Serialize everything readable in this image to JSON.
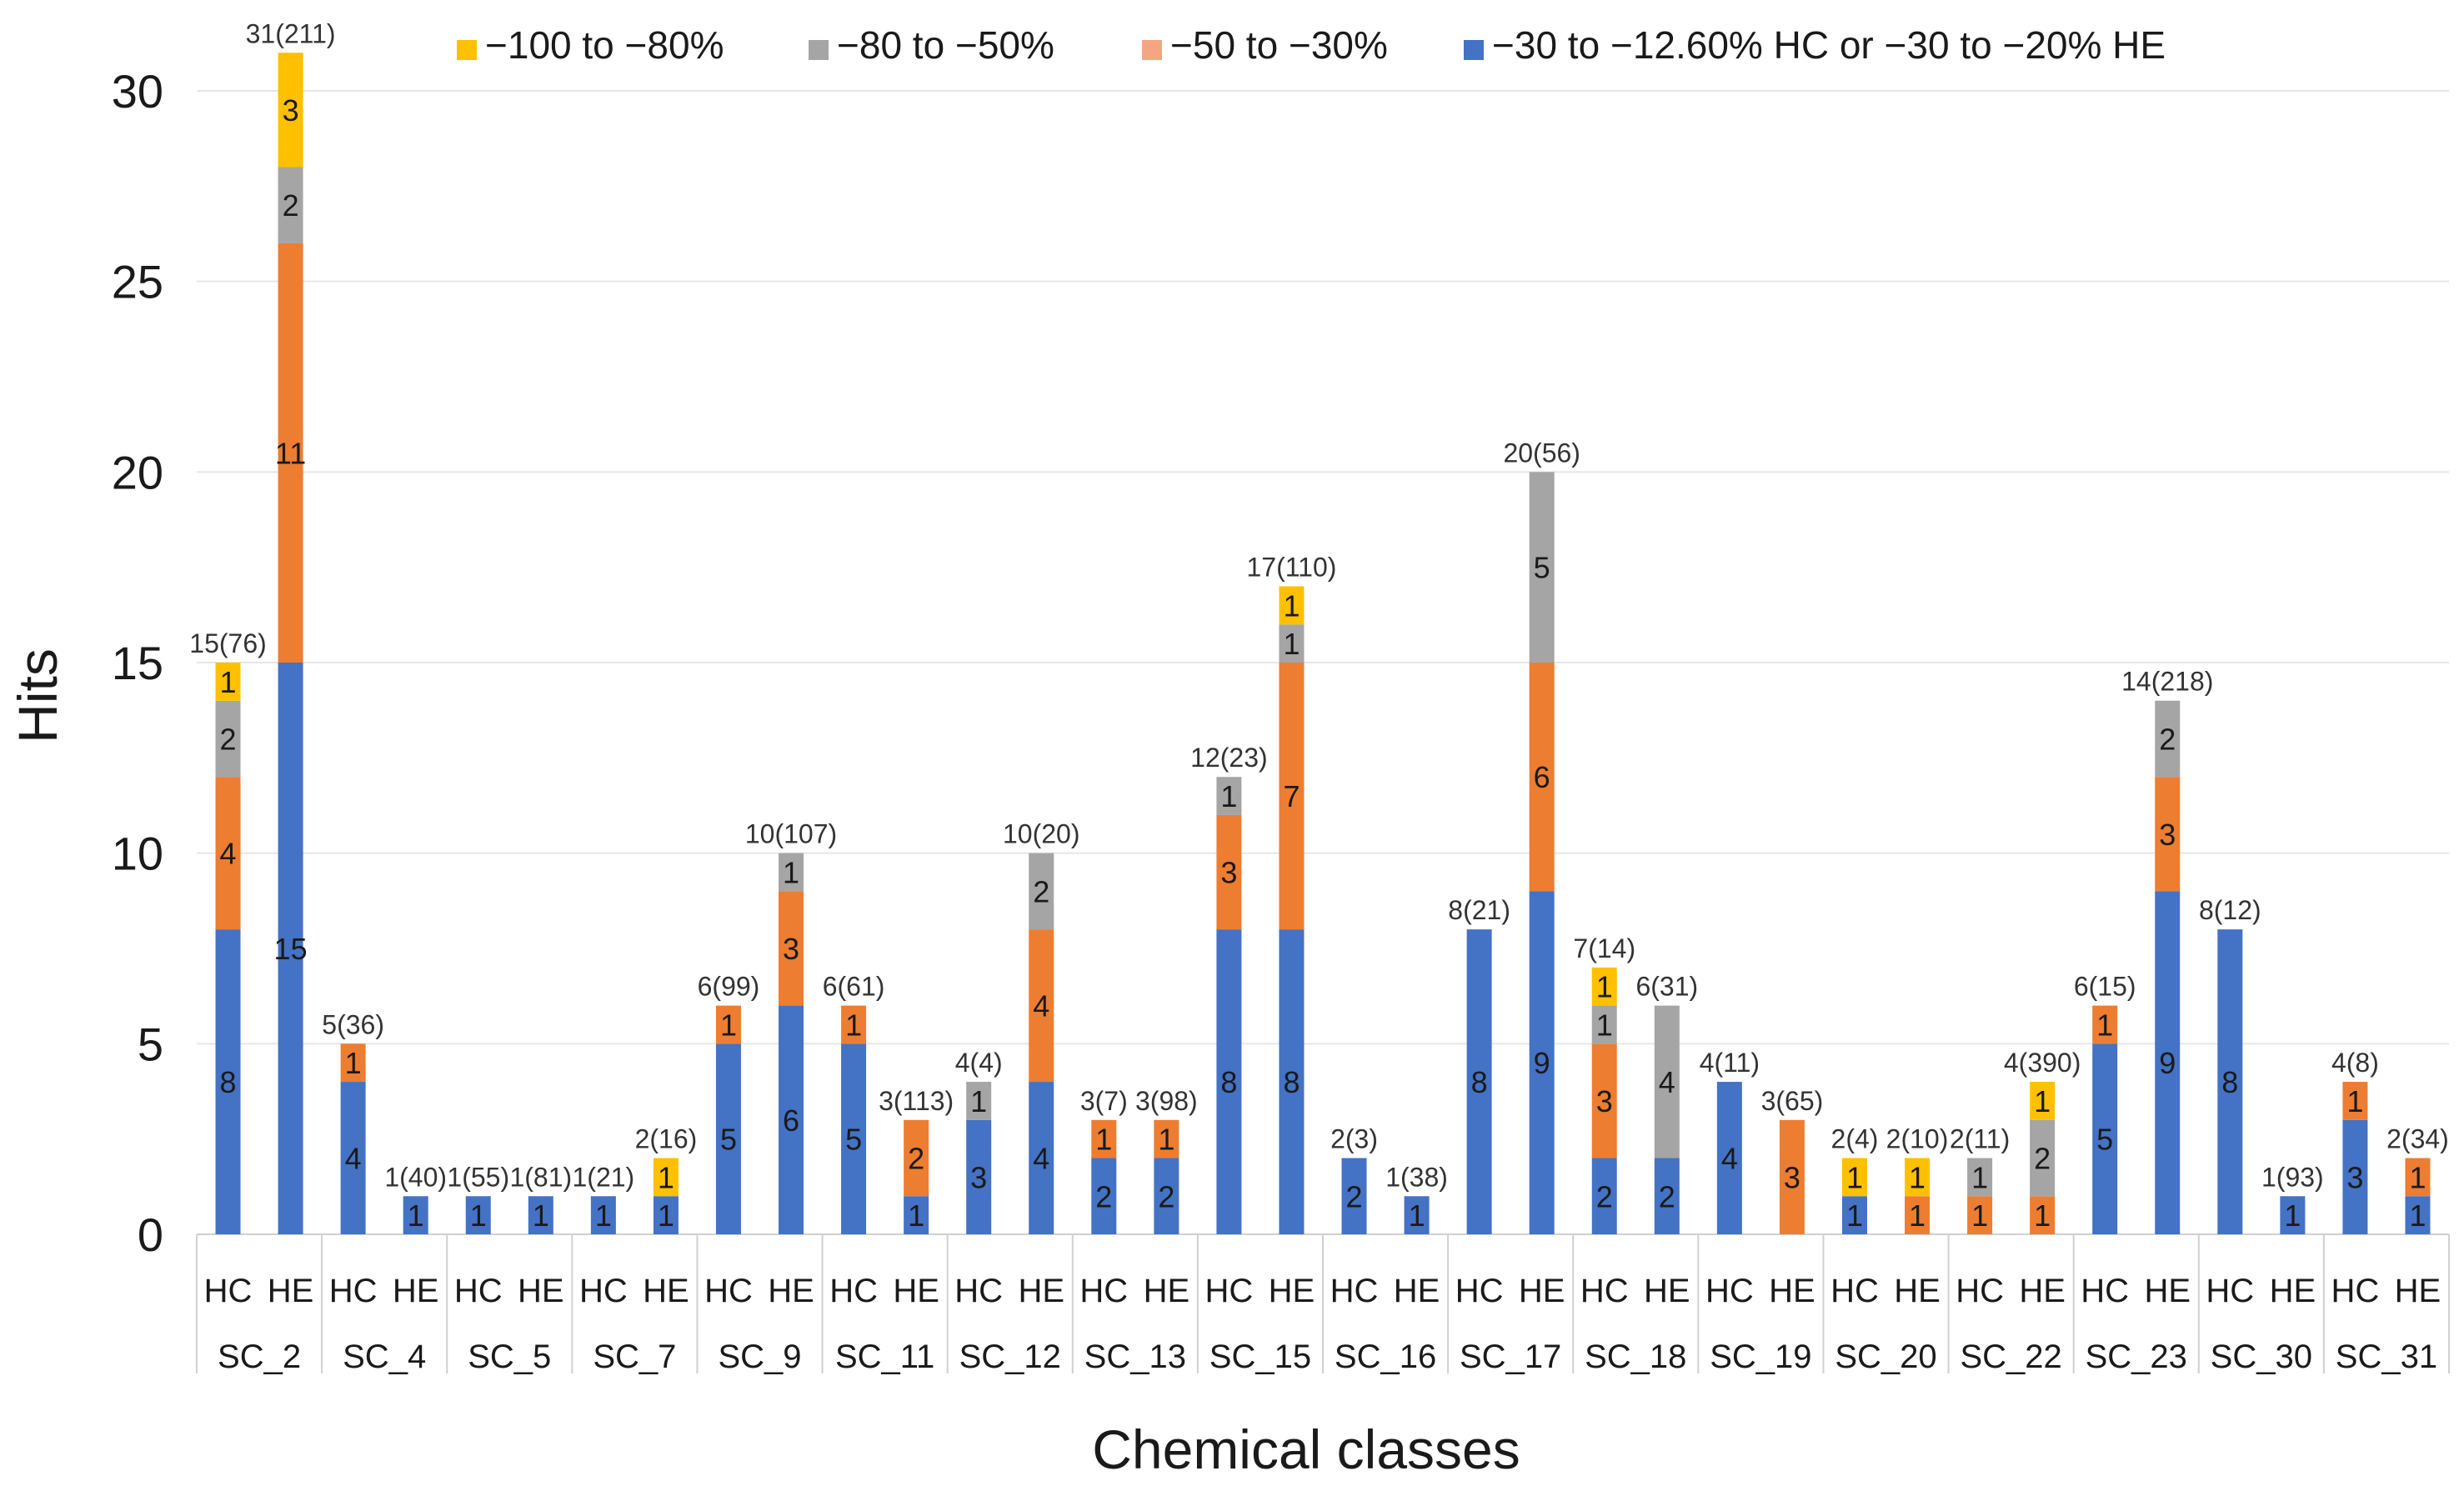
{
  "chart_data": {
    "type": "bar",
    "stacked": true,
    "title": "",
    "xlabel": "Chemical classes",
    "ylabel": "Hits",
    "ylim": [
      0,
      31
    ],
    "yticks": [
      0,
      5,
      10,
      15,
      20,
      25,
      30
    ],
    "grid": true,
    "legend_position": "top",
    "legend": [
      {
        "key": "r1",
        "label": "−100 to −80%",
        "color": "#FFC000"
      },
      {
        "key": "r2",
        "label": "−80 to −50%",
        "color": "#A5A5A5"
      },
      {
        "key": "r3",
        "label": "−50 to −30%",
        "color": "#F4A582"
      },
      {
        "key": "r4",
        "label": "−30 to −12.60% HC or −30 to −20% HE",
        "color": "#4472C4"
      }
    ],
    "segment_colors": {
      "r4": "#4472C4",
      "r3": "#ED7D31",
      "r2": "#A5A5A5",
      "r1": "#FFC000"
    },
    "stack_order": [
      "r4",
      "r3",
      "r2",
      "r1"
    ],
    "groups": [
      {
        "class": "SC_2",
        "bars": [
          {
            "sub": "HC",
            "total_label": "15(76)",
            "r4": 8,
            "r3": 4,
            "r2": 2,
            "r1": 1
          },
          {
            "sub": "HE",
            "total_label": "31(211)",
            "r4": 15,
            "r3": 11,
            "r2": 2,
            "r1": 3
          }
        ]
      },
      {
        "class": "SC_4",
        "bars": [
          {
            "sub": "HC",
            "total_label": "5(36)",
            "r4": 4,
            "r3": 1,
            "r2": 0,
            "r1": 0
          },
          {
            "sub": "HE",
            "total_label": "1(40)",
            "r4": 1,
            "r3": 0,
            "r2": 0,
            "r1": 0
          }
        ]
      },
      {
        "class": "SC_5",
        "bars": [
          {
            "sub": "HC",
            "total_label": "1(55)",
            "r4": 1,
            "r3": 0,
            "r2": 0,
            "r1": 0
          },
          {
            "sub": "HE",
            "total_label": "1(81)",
            "r4": 1,
            "r3": 0,
            "r2": 0,
            "r1": 0
          }
        ]
      },
      {
        "class": "SC_7",
        "bars": [
          {
            "sub": "HC",
            "total_label": "1(21)",
            "r4": 1,
            "r3": 0,
            "r2": 0,
            "r1": 0
          },
          {
            "sub": "HE",
            "total_label": "2(16)",
            "r4": 1,
            "r3": 0,
            "r2": 0,
            "r1": 1
          }
        ]
      },
      {
        "class": "SC_9",
        "bars": [
          {
            "sub": "HC",
            "total_label": "6(99)",
            "r4": 5,
            "r3": 1,
            "r2": 0,
            "r1": 0
          },
          {
            "sub": "HE",
            "total_label": "10(107)",
            "r4": 6,
            "r3": 3,
            "r2": 1,
            "r1": 0
          }
        ]
      },
      {
        "class": "SC_11",
        "bars": [
          {
            "sub": "HC",
            "total_label": "6(61)",
            "r4": 5,
            "r3": 1,
            "r2": 0,
            "r1": 0
          },
          {
            "sub": "HE",
            "total_label": "3(113)",
            "r4": 1,
            "r3": 2,
            "r2": 0,
            "r1": 0
          }
        ]
      },
      {
        "class": "SC_12",
        "bars": [
          {
            "sub": "HC",
            "total_label": "4(4)",
            "r4": 3,
            "r3": 0,
            "r2": 1,
            "r1": 0
          },
          {
            "sub": "HE",
            "total_label": "10(20)",
            "r4": 4,
            "r3": 4,
            "r2": 2,
            "r1": 0
          }
        ]
      },
      {
        "class": "SC_13",
        "bars": [
          {
            "sub": "HC",
            "total_label": "3(7)",
            "r4": 2,
            "r3": 1,
            "r2": 0,
            "r1": 0
          },
          {
            "sub": "HE",
            "total_label": "3(98)",
            "r4": 2,
            "r3": 1,
            "r2": 0,
            "r1": 0
          }
        ]
      },
      {
        "class": "SC_15",
        "bars": [
          {
            "sub": "HC",
            "total_label": "12(23)",
            "r4": 8,
            "r3": 3,
            "r2": 1,
            "r1": 0
          },
          {
            "sub": "HE",
            "total_label": "17(110)",
            "r4": 8,
            "r3": 7,
            "r2": 1,
            "r1": 1
          }
        ]
      },
      {
        "class": "SC_16",
        "bars": [
          {
            "sub": "HC",
            "total_label": "2(3)",
            "r4": 2,
            "r3": 0,
            "r2": 0,
            "r1": 0
          },
          {
            "sub": "HE",
            "total_label": "1(38)",
            "r4": 1,
            "r3": 0,
            "r2": 0,
            "r1": 0
          }
        ]
      },
      {
        "class": "SC_17",
        "bars": [
          {
            "sub": "HC",
            "total_label": "8(21)",
            "r4": 8,
            "r3": 0,
            "r2": 0,
            "r1": 0
          },
          {
            "sub": "HE",
            "total_label": "20(56)",
            "r4": 9,
            "r3": 6,
            "r2": 5,
            "r1": 0
          }
        ]
      },
      {
        "class": "SC_18",
        "bars": [
          {
            "sub": "HC",
            "total_label": "7(14)",
            "r4": 2,
            "r3": 3,
            "r2": 1,
            "r1": 1
          },
          {
            "sub": "HE",
            "total_label": "6(31)",
            "r4": 2,
            "r3": 0,
            "r2": 4,
            "r1": 0
          }
        ]
      },
      {
        "class": "SC_19",
        "bars": [
          {
            "sub": "HC",
            "total_label": "4(11)",
            "r4": 4,
            "r3": 0,
            "r2": 0,
            "r1": 0
          },
          {
            "sub": "HE",
            "total_label": "3(65)",
            "r4": 0,
            "r3": 3,
            "r2": 0,
            "r1": 0
          }
        ]
      },
      {
        "class": "SC_20",
        "bars": [
          {
            "sub": "HC",
            "total_label": "2(4)",
            "r4": 1,
            "r3": 0,
            "r2": 0,
            "r1": 1
          },
          {
            "sub": "HE",
            "total_label": "2(10)",
            "r4": 0,
            "r3": 1,
            "r2": 0,
            "r1": 1
          }
        ]
      },
      {
        "class": "SC_22",
        "bars": [
          {
            "sub": "HC",
            "total_label": "2(11)",
            "r4": 0,
            "r3": 1,
            "r2": 1,
            "r1": 0
          },
          {
            "sub": "HE",
            "total_label": "4(390)",
            "r4": 0,
            "r3": 1,
            "r2": 2,
            "r1": 1
          }
        ]
      },
      {
        "class": "SC_23",
        "bars": [
          {
            "sub": "HC",
            "total_label": "6(15)",
            "r4": 5,
            "r3": 1,
            "r2": 0,
            "r1": 0
          },
          {
            "sub": "HE",
            "total_label": "14(218)",
            "r4": 9,
            "r3": 3,
            "r2": 2,
            "r1": 0
          }
        ]
      },
      {
        "class": "SC_30",
        "bars": [
          {
            "sub": "HC",
            "total_label": "8(12)",
            "r4": 8,
            "r3": 0,
            "r2": 0,
            "r1": 0
          },
          {
            "sub": "HE",
            "total_label": "1(93)",
            "r4": 1,
            "r3": 0,
            "r2": 0,
            "r1": 0
          }
        ]
      },
      {
        "class": "SC_31",
        "bars": [
          {
            "sub": "HC",
            "total_label": "4(8)",
            "r4": 3,
            "r3": 1,
            "r2": 0,
            "r1": 0
          },
          {
            "sub": "HE",
            "total_label": "2(34)",
            "r4": 1,
            "r3": 1,
            "r2": 0,
            "r1": 0
          }
        ]
      }
    ]
  }
}
